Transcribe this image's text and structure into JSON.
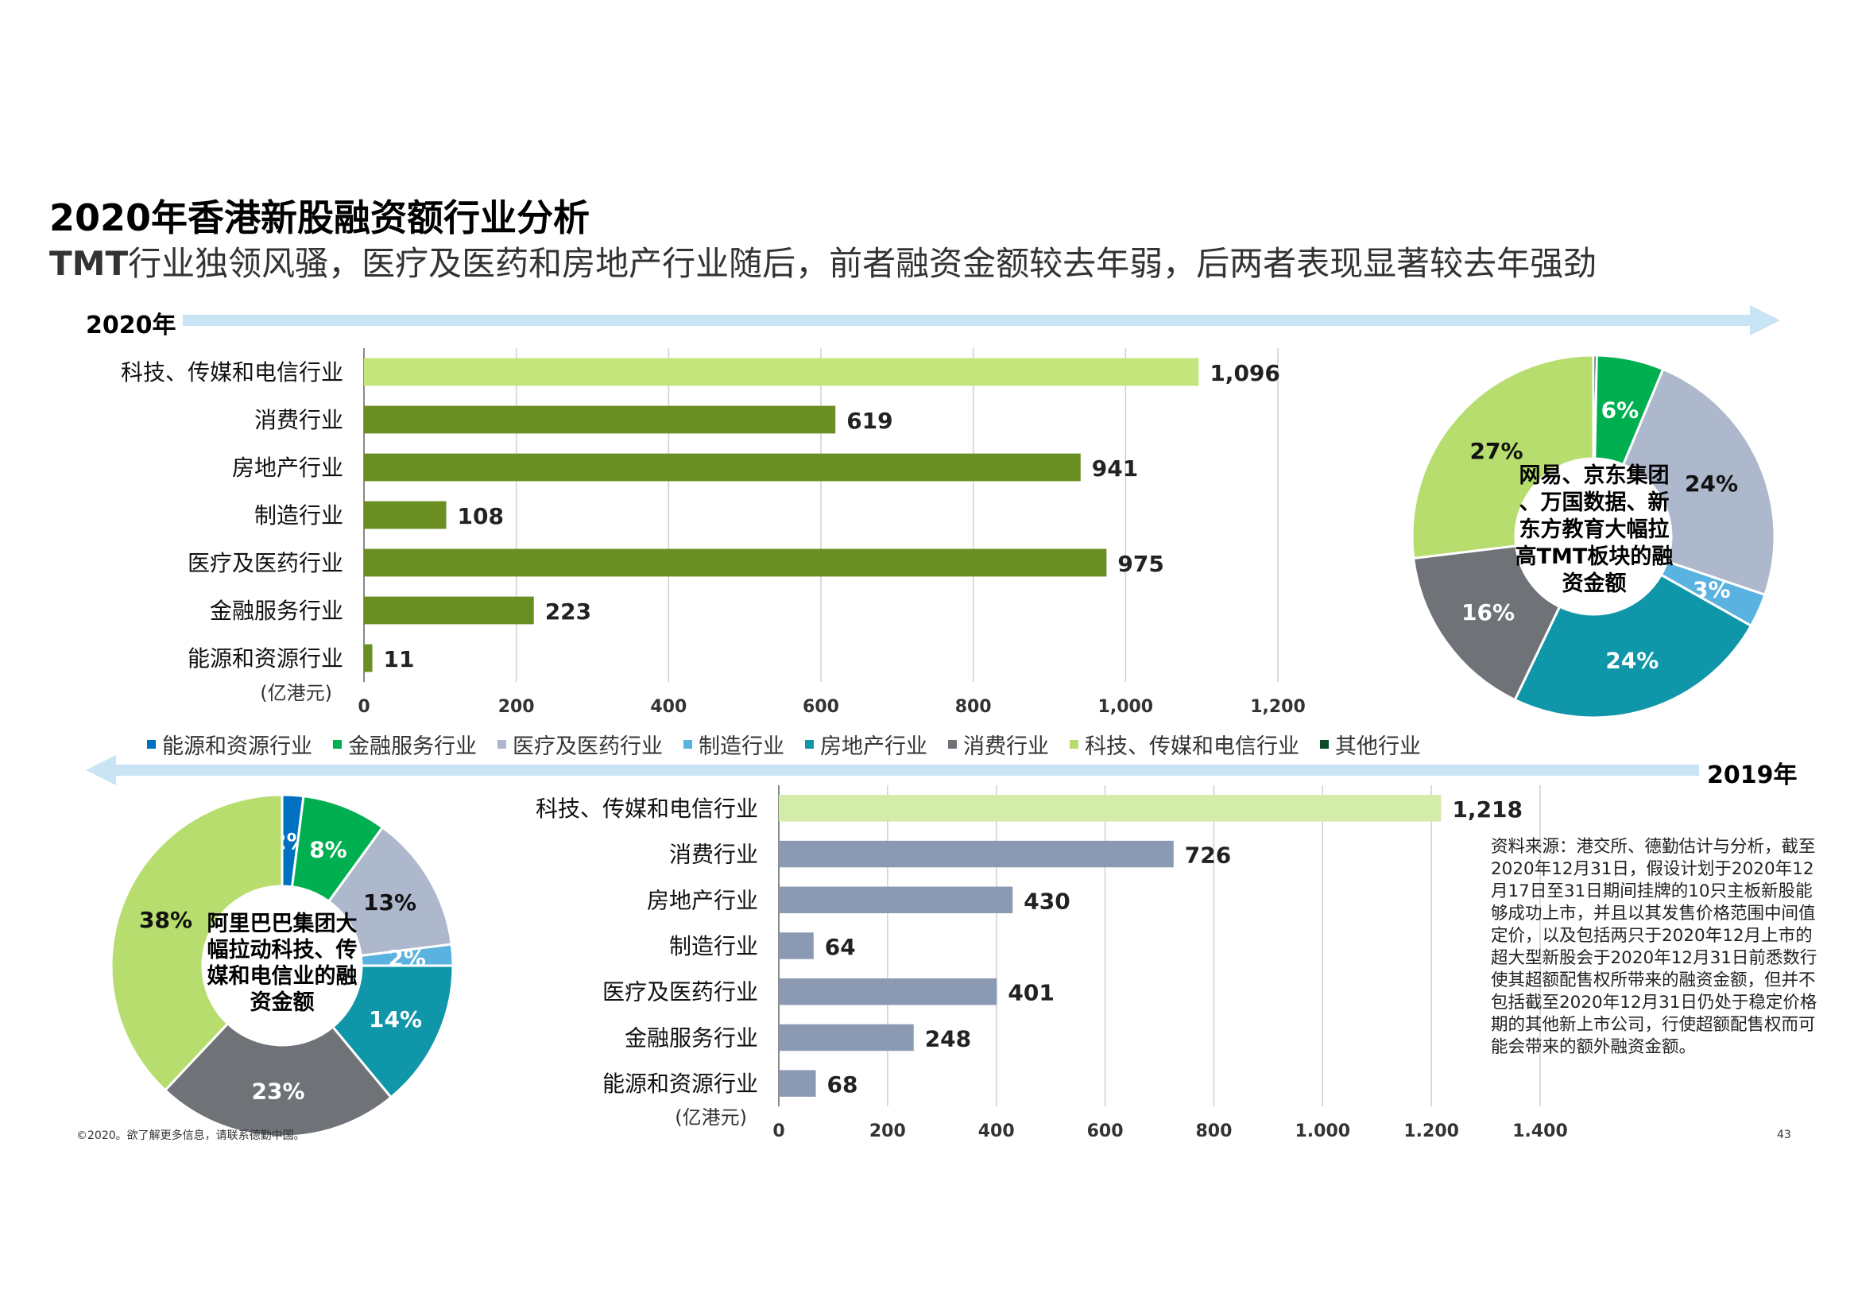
{
  "title": "2020年香港新股融资额行业分析",
  "subtitle": {
    "lead": "TMT",
    "rest": "行业独领风骚，医疗及医药和房地产行业随后，前者融资金额较去年弱，后两者表现显著较去年强劲"
  },
  "year_2020_label": "2020年",
  "year_2019_label": "2019年",
  "legend": [
    {
      "label": "能源和资源行业",
      "color": "#0070c0"
    },
    {
      "label": "金融服务行业",
      "color": "#00b050"
    },
    {
      "label": "医疗及医药行业",
      "color": "#aeb8cc"
    },
    {
      "label": "制造行业",
      "color": "#5ab2e0"
    },
    {
      "label": "房地产行业",
      "color": "#0f96a8"
    },
    {
      "label": "消费行业",
      "color": "#6f7378"
    },
    {
      "label": "科技、传媒和电信行业",
      "color": "#b6dd6e"
    },
    {
      "label": "其他行业",
      "color": "#0b4a2a"
    }
  ],
  "donut_2020_center": [
    "网易、京东集团",
    "、万国数据、新",
    "东方教育大幅拉",
    "高TMT板块的融",
    "资金额"
  ],
  "donut_2019_center": [
    "阿里巴巴集团大",
    "幅拉动科技、传",
    "媒和电信业的融",
    "资金额"
  ],
  "source_note": "资料来源：港交所、德勤估计与分析，截至2020年12月31日，假设计划于2020年12月17日至31日期间挂牌的10只主板新股能够成功上市，并且以其发售价格范围中间值定价，以及包括两只于2020年12月上市的超大型新股会于2020年12月31日前悉数行使其超额配售权所带来的融资金额，但并不包括截至2020年12月31日仍处于稳定价格期的其他新上市公司，行使超额配售权而可能会带来的额外融资金额。",
  "copyright": "©2020。欲了解更多信息，请联系德勤中国。",
  "page_number": "43",
  "chart_data": [
    {
      "id": "bar2020",
      "type": "bar",
      "orientation": "horizontal",
      "categories": [
        "科技、传媒和电信行业",
        "消费行业",
        "房地产行业",
        "制造行业",
        "医疗及医药行业",
        "金融服务行业",
        "能源和资源行业"
      ],
      "values": [
        1096,
        619,
        941,
        108,
        975,
        223,
        11
      ],
      "value_labels": [
        "1,096",
        "619",
        "941",
        "108",
        "975",
        "223",
        "11"
      ],
      "colors": [
        "#c3e57c",
        "#6b8e23",
        "#6b8e23",
        "#6b8e23",
        "#6b8e23",
        "#6b8e23",
        "#6b8e23"
      ],
      "xlim": [
        0,
        1200
      ],
      "xticks": [
        "0",
        "200",
        "400",
        "600",
        "800",
        "1,000",
        "1,200"
      ],
      "unit_label": "(亿港元)",
      "grid": true
    },
    {
      "id": "bar2019",
      "type": "bar",
      "orientation": "horizontal",
      "categories": [
        "科技、传媒和电信行业",
        "消费行业",
        "房地产行业",
        "制造行业",
        "医疗及医药行业",
        "金融服务行业",
        "能源和资源行业"
      ],
      "values": [
        1218,
        726,
        430,
        64,
        401,
        248,
        68
      ],
      "value_labels": [
        "1,218",
        "726",
        "430",
        "64",
        "401",
        "248",
        "68"
      ],
      "colors": [
        "#d4ecaa",
        "#8b99b3",
        "#8b99b3",
        "#8b99b3",
        "#8b99b3",
        "#8b99b3",
        "#8b99b3"
      ],
      "xlim": [
        0,
        1400
      ],
      "xticks": [
        "0",
        "200",
        "400",
        "600",
        "800",
        "1,000",
        "1,200",
        "1,400"
      ],
      "unit_label": "(亿港元)",
      "grid": true
    },
    {
      "id": "donut2020",
      "type": "pie",
      "variant": "donut",
      "slices": [
        {
          "label": "其他行业",
          "value": 0.3,
          "color": "#0b4a2a",
          "text": ""
        },
        {
          "label": "金融服务行业",
          "value": 6,
          "color": "#00b050",
          "text": "6%"
        },
        {
          "label": "医疗及医药行业",
          "value": 24,
          "color": "#aeb8cc",
          "text": "24%"
        },
        {
          "label": "制造行业",
          "value": 3,
          "color": "#5ab2e0",
          "text": "3%"
        },
        {
          "label": "房地产行业",
          "value": 24,
          "color": "#0f96a8",
          "text": "24%"
        },
        {
          "label": "消费行业",
          "value": 16,
          "color": "#6f7378",
          "text": "16%"
        },
        {
          "label": "科技、传媒和电信行业",
          "value": 27,
          "color": "#b6dd6e",
          "text": "27%"
        }
      ]
    },
    {
      "id": "donut2019",
      "type": "pie",
      "variant": "donut",
      "slices": [
        {
          "label": "能源和资源行业",
          "value": 2,
          "color": "#0070c0",
          "text": "2%"
        },
        {
          "label": "金融服务行业",
          "value": 8,
          "color": "#00b050",
          "text": "8%"
        },
        {
          "label": "医疗及医药行业",
          "value": 13,
          "color": "#aeb8cc",
          "text": "13%"
        },
        {
          "label": "制造行业",
          "value": 2,
          "color": "#5ab2e0",
          "text": "2%"
        },
        {
          "label": "房地产行业",
          "value": 14,
          "color": "#0f96a8",
          "text": "14%"
        },
        {
          "label": "消费行业",
          "value": 23,
          "color": "#6f7378",
          "text": "23%"
        },
        {
          "label": "科技、传媒和电信行业",
          "value": 38,
          "color": "#b6dd6e",
          "text": "38%"
        }
      ]
    }
  ]
}
